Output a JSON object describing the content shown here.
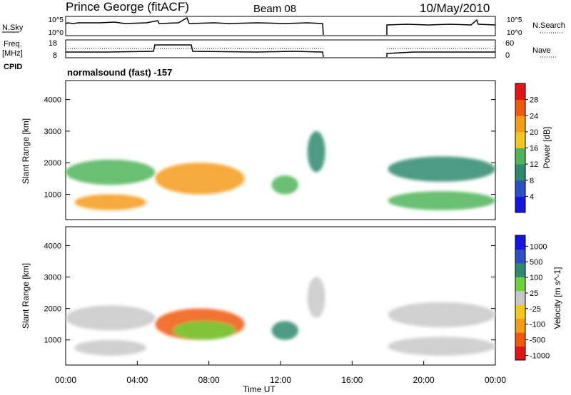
{
  "header": {
    "radar": "Prince George (fitACF)",
    "beam": "Beam 08",
    "date": "10/May/2010"
  },
  "noise_panel": {
    "left_label": "N.Sky",
    "left_ticks": [
      "10^5",
      "10^0"
    ],
    "right_ticks": [
      "10^5",
      "10^0"
    ],
    "right_label": "N.Search"
  },
  "freq_panel": {
    "left_label_1": "Freq.",
    "left_label_2": "[MHz]",
    "left_ticks": [
      "18",
      "8"
    ],
    "right_ticks": [
      "60",
      "0"
    ],
    "right_label": "Nave",
    "cpid_label": "CPID",
    "cpid_text": "normalsound (fast) -157"
  },
  "colors": {
    "power_scale": [
      "#1414e6",
      "#2a4fc8",
      "#2e8a6e",
      "#4fb45a",
      "#f2c81e",
      "#f59b14",
      "#f05a0a",
      "#e61414"
    ],
    "velocity_scale": [
      "#e61414",
      "#f05a0a",
      "#f59b14",
      "#f2c81e",
      "#c8c8c8",
      "#6ed23c",
      "#2e8a6e",
      "#2a4fc8",
      "#1414e6"
    ]
  },
  "chart_data": [
    {
      "type": "heatmap",
      "ylabel": "Slant Range [km]",
      "y_ticks": [
        "1000",
        "2000",
        "3000",
        "4000"
      ],
      "ylim": [
        200,
        4600
      ],
      "xlim": [
        "00:00",
        "24:00"
      ],
      "colorbar": {
        "label": "Power [dB]",
        "ticks": [
          "4",
          "8",
          "12",
          "16",
          "20",
          "24",
          "28"
        ],
        "range": [
          0,
          32
        ]
      },
      "data_gaps": [
        [
          14.5,
          18.0
        ]
      ],
      "echo_regions": [
        {
          "t": [
            0.0,
            5.0
          ],
          "range_km": [
            1300,
            2100
          ],
          "power_db": 12
        },
        {
          "t": [
            0.5,
            4.5
          ],
          "range_km": [
            500,
            1000
          ],
          "power_db": 20
        },
        {
          "t": [
            5.0,
            10.0
          ],
          "range_km": [
            1000,
            2000
          ],
          "power_db": 20
        },
        {
          "t": [
            11.5,
            13.0
          ],
          "range_km": [
            1000,
            1600
          ],
          "power_db": 14
        },
        {
          "t": [
            13.5,
            14.5
          ],
          "range_km": [
            1700,
            3000
          ],
          "power_db": 8
        },
        {
          "t": [
            18.0,
            24.0
          ],
          "range_km": [
            1400,
            2200
          ],
          "power_db": 8
        },
        {
          "t": [
            18.0,
            24.0
          ],
          "range_km": [
            500,
            1100
          ],
          "power_db": 14
        }
      ]
    },
    {
      "type": "heatmap",
      "ylabel": "Slant Range [km]",
      "y_ticks": [
        "1000",
        "2000",
        "3000",
        "4000"
      ],
      "ylim": [
        200,
        4600
      ],
      "xlabel": "Time UT",
      "x_ticks": [
        "00:00",
        "04:00",
        "08:00",
        "12:00",
        "16:00",
        "20:00",
        "00:00"
      ],
      "xlim": [
        "00:00",
        "24:00"
      ],
      "colorbar": {
        "label": "Velocity [m s^-1]",
        "ticks": [
          "1000",
          "500",
          "100",
          "25",
          "-25",
          "-100",
          "-500",
          "-1000"
        ],
        "range": [
          -1000,
          1000
        ]
      },
      "data_gaps": [
        [
          14.5,
          18.0
        ]
      ],
      "echo_regions": [
        {
          "t": [
            0.0,
            5.0
          ],
          "range_km": [
            1300,
            2100
          ],
          "velocity": 0
        },
        {
          "t": [
            0.5,
            4.5
          ],
          "range_km": [
            500,
            1000
          ],
          "velocity": 0
        },
        {
          "t": [
            5.0,
            10.0
          ],
          "range_km": [
            1000,
            2000
          ],
          "velocity": -300
        },
        {
          "t": [
            6.0,
            9.5
          ],
          "range_km": [
            1000,
            1600
          ],
          "velocity": 80
        },
        {
          "t": [
            11.5,
            13.0
          ],
          "range_km": [
            1000,
            1600
          ],
          "velocity": 200
        },
        {
          "t": [
            13.5,
            14.5
          ],
          "range_km": [
            1700,
            3000
          ],
          "velocity": 0
        },
        {
          "t": [
            18.0,
            24.0
          ],
          "range_km": [
            1400,
            2200
          ],
          "velocity": 0
        },
        {
          "t": [
            18.0,
            24.0
          ],
          "range_km": [
            500,
            1100
          ],
          "velocity": 0
        }
      ]
    }
  ]
}
